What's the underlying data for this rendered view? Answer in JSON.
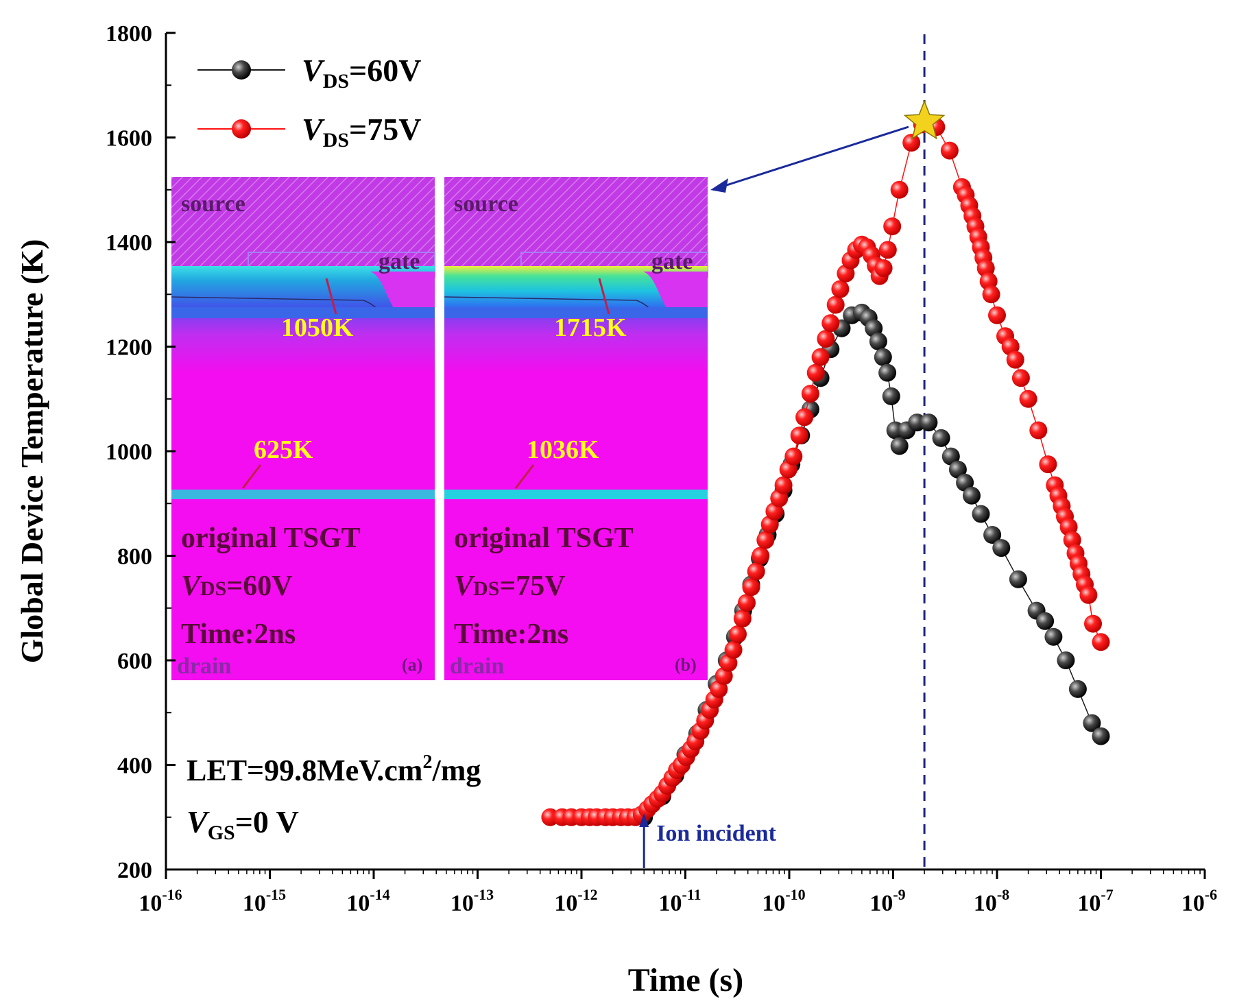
{
  "chart_data": {
    "type": "scatter",
    "xlabel": "Time (s)",
    "ylabel": "Global Device Temperature (K)",
    "x_scale": "log",
    "xlim": [
      1e-16,
      1e-06
    ],
    "ylim": [
      200,
      1800
    ],
    "x_tick_base": "10",
    "x_tick_exponents": [
      "-16",
      "-15",
      "-14",
      "-13",
      "-12",
      "-11",
      "-10",
      "-9",
      "-8",
      "-7",
      "-6"
    ],
    "y_ticks": [
      "200",
      "400",
      "600",
      "800",
      "1000",
      "1200",
      "1400",
      "1600",
      "1800"
    ],
    "grid": false,
    "legend_position": "top-left",
    "series": [
      {
        "name_main": "V",
        "name_sub": "DS",
        "name_tail": "=60V",
        "color": "#1a1a1a",
        "points": [
          [
            4e-12,
            300
          ],
          [
            6e-12,
            340
          ],
          [
            8e-12,
            380
          ],
          [
            1e-11,
            420
          ],
          [
            1.3e-11,
            460
          ],
          [
            1.6e-11,
            505
          ],
          [
            2e-11,
            555
          ],
          [
            2.5e-11,
            600
          ],
          [
            3e-11,
            645
          ],
          [
            3.6e-11,
            695
          ],
          [
            4.3e-11,
            745
          ],
          [
            5.2e-11,
            795
          ],
          [
            6.2e-11,
            840
          ],
          [
            7.4e-11,
            880
          ],
          [
            8.8e-11,
            925
          ],
          [
            1.05e-10,
            975
          ],
          [
            1.3e-10,
            1030
          ],
          [
            1.6e-10,
            1080
          ],
          [
            2e-10,
            1140
          ],
          [
            2.5e-10,
            1195
          ],
          [
            3.2e-10,
            1235
          ],
          [
            4e-10,
            1260
          ],
          [
            5e-10,
            1265
          ],
          [
            5.8e-10,
            1255
          ],
          [
            6.5e-10,
            1235
          ],
          [
            7.2e-10,
            1210
          ],
          [
            8e-10,
            1180
          ],
          [
            8.8e-10,
            1150
          ],
          [
            9.6e-10,
            1105
          ],
          [
            1.05e-09,
            1040
          ],
          [
            1.15e-09,
            1010
          ],
          [
            1.35e-09,
            1040
          ],
          [
            1.7e-09,
            1055
          ],
          [
            2.2e-09,
            1055
          ],
          [
            2.9e-09,
            1025
          ],
          [
            3.6e-09,
            990
          ],
          [
            4.2e-09,
            965
          ],
          [
            4.9e-09,
            940
          ],
          [
            5.7e-09,
            915
          ],
          [
            7e-09,
            880
          ],
          [
            9e-09,
            840
          ],
          [
            1.1e-08,
            815
          ],
          [
            1.6e-08,
            755
          ],
          [
            2.4e-08,
            695
          ],
          [
            2.9e-08,
            675
          ],
          [
            3.5e-08,
            645
          ],
          [
            4.6e-08,
            600
          ],
          [
            6e-08,
            545
          ],
          [
            8.2e-08,
            480
          ],
          [
            1e-07,
            455
          ]
        ]
      },
      {
        "name_main": "V",
        "name_sub": "DS",
        "name_tail": "=75V",
        "color": "#ff1010",
        "points": [
          [
            5e-13,
            300
          ],
          [
            6.5e-13,
            300
          ],
          [
            8e-13,
            300
          ],
          [
            1e-12,
            300
          ],
          [
            1.2e-12,
            300
          ],
          [
            1.4e-12,
            300
          ],
          [
            1.7e-12,
            300
          ],
          [
            2e-12,
            300
          ],
          [
            2.4e-12,
            300
          ],
          [
            2.8e-12,
            300
          ],
          [
            3.3e-12,
            300
          ],
          [
            3.8e-12,
            305
          ],
          [
            4.3e-12,
            315
          ],
          [
            4.8e-12,
            325
          ],
          [
            5.4e-12,
            335
          ],
          [
            6e-12,
            345
          ],
          [
            6.7e-12,
            360
          ],
          [
            7.5e-12,
            375
          ],
          [
            8.3e-12,
            390
          ],
          [
            9.2e-12,
            400
          ],
          [
            1.02e-11,
            415
          ],
          [
            1.13e-11,
            430
          ],
          [
            1.25e-11,
            445
          ],
          [
            1.4e-11,
            465
          ],
          [
            1.55e-11,
            485
          ],
          [
            1.72e-11,
            505
          ],
          [
            1.9e-11,
            525
          ],
          [
            2.1e-11,
            545
          ],
          [
            2.35e-11,
            570
          ],
          [
            2.6e-11,
            595
          ],
          [
            2.9e-11,
            620
          ],
          [
            3.2e-11,
            650
          ],
          [
            3.55e-11,
            680
          ],
          [
            3.9e-11,
            710
          ],
          [
            4.3e-11,
            740
          ],
          [
            4.8e-11,
            770
          ],
          [
            5.3e-11,
            800
          ],
          [
            5.9e-11,
            830
          ],
          [
            6.5e-11,
            860
          ],
          [
            7.2e-11,
            885
          ],
          [
            8e-11,
            910
          ],
          [
            8.8e-11,
            935
          ],
          [
            9.8e-11,
            965
          ],
          [
            1.1e-10,
            990
          ],
          [
            1.25e-10,
            1030
          ],
          [
            1.4e-10,
            1065
          ],
          [
            1.6e-10,
            1110
          ],
          [
            1.8e-10,
            1150
          ],
          [
            2e-10,
            1180
          ],
          [
            2.25e-10,
            1215
          ],
          [
            2.5e-10,
            1245
          ],
          [
            2.8e-10,
            1280
          ],
          [
            3.1e-10,
            1310
          ],
          [
            3.5e-10,
            1340
          ],
          [
            3.9e-10,
            1365
          ],
          [
            4.4e-10,
            1385
          ],
          [
            5e-10,
            1395
          ],
          [
            5.6e-10,
            1390
          ],
          [
            6.2e-10,
            1375
          ],
          [
            6.8e-10,
            1355
          ],
          [
            7.4e-10,
            1335
          ],
          [
            8.1e-10,
            1350
          ],
          [
            8.9e-10,
            1385
          ],
          [
            9.8e-10,
            1430
          ],
          [
            1.15e-09,
            1500
          ],
          [
            1.5e-09,
            1590
          ],
          [
            1.9e-09,
            1625
          ],
          [
            2.6e-09,
            1620
          ],
          [
            3.5e-09,
            1575
          ],
          [
            4.6e-09,
            1505
          ],
          [
            5e-09,
            1490
          ],
          [
            5.4e-09,
            1470
          ],
          [
            5.8e-09,
            1450
          ],
          [
            6.2e-09,
            1430
          ],
          [
            6.6e-09,
            1410
          ],
          [
            7e-09,
            1390
          ],
          [
            7.4e-09,
            1370
          ],
          [
            7.8e-09,
            1350
          ],
          [
            8.3e-09,
            1325
          ],
          [
            8.8e-09,
            1300
          ],
          [
            1e-08,
            1260
          ],
          [
            1.2e-08,
            1220
          ],
          [
            1.35e-08,
            1200
          ],
          [
            1.5e-08,
            1175
          ],
          [
            1.7e-08,
            1140
          ],
          [
            2e-08,
            1100
          ],
          [
            2.5e-08,
            1040
          ],
          [
            3.1e-08,
            975
          ],
          [
            3.6e-08,
            935
          ],
          [
            3.9e-08,
            915
          ],
          [
            4.2e-08,
            895
          ],
          [
            4.5e-08,
            875
          ],
          [
            4.9e-08,
            855
          ],
          [
            5.3e-08,
            830
          ],
          [
            5.7e-08,
            805
          ],
          [
            6.1e-08,
            785
          ],
          [
            6.5e-08,
            765
          ],
          [
            7e-08,
            745
          ],
          [
            7.6e-08,
            725
          ],
          [
            8.4e-08,
            670
          ],
          [
            1e-07,
            635
          ]
        ]
      }
    ],
    "annotations": {
      "let_main": "LET=99.8MeV.cm",
      "let_sup": "2",
      "let_tail": "/mg",
      "vgs_main": "V",
      "vgs_sub": "GS",
      "vgs_tail": "=0 V",
      "ion_incident": "Ion incident",
      "ion_incident_time": 4e-12,
      "dashed_line_time": 2e-09,
      "star_time": 2e-09,
      "star_value": 1630
    },
    "insets": [
      {
        "source_label": "source",
        "gate_label": "gate",
        "drain_label": "drain",
        "hot_spot_temp": "1050K",
        "drain_temp": "625K",
        "device_label": "original TSGT",
        "bias_main": "V",
        "bias_sub": "DS",
        "bias_tail": "=60V",
        "time_label": "Time:2ns",
        "panel_label": "(a)",
        "band_color": "#2ab6d6",
        "hot_color": "#29d2c8"
      },
      {
        "source_label": "source",
        "gate_label": "gate",
        "drain_label": "drain",
        "hot_spot_temp": "1715K",
        "drain_temp": "1036K",
        "device_label": "original TSGT",
        "bias_main": "V",
        "bias_sub": "DS",
        "bias_tail": "=75V",
        "time_label": "Time:2ns",
        "panel_label": "(b)",
        "band_color": "#23c9d3",
        "hot_color": "#e6e63a"
      }
    ]
  },
  "colors": {
    "axis": "#000000",
    "arrow": "#1a2a9a",
    "dashed_line": "#1a237e",
    "star": "#f2d21c",
    "inset_bg": "#f40df0",
    "inset_source": "#c038e8",
    "label_yellow": "#ffff1a"
  }
}
